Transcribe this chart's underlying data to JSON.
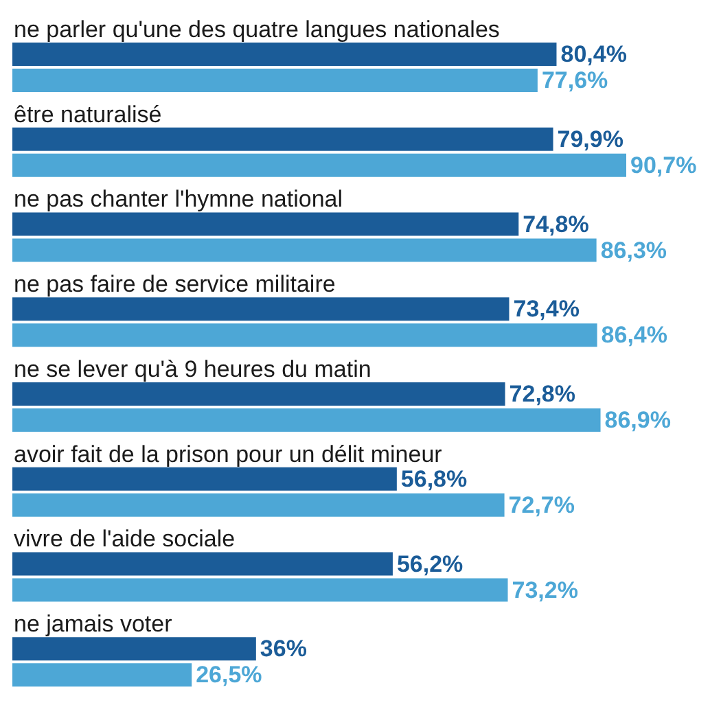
{
  "chart_data": {
    "type": "bar",
    "orientation": "horizontal",
    "categories": [
      "ne parler qu'une des quatre langues nationales",
      "être naturalisé",
      "ne pas chanter l'hymne national",
      "ne pas faire de service militaire",
      "ne se lever qu'à 9 heures du matin",
      "avoir fait de la prison pour un délit mineur",
      "vivre de l'aide sociale",
      "ne jamais voter"
    ],
    "series": [
      {
        "color": "#1b5c98",
        "values": [
          80.4,
          79.9,
          74.8,
          73.4,
          72.8,
          56.8,
          56.2,
          36
        ],
        "value_labels": [
          "80,4%",
          "79,9%",
          "74,8%",
          "73,4%",
          "72,8%",
          "56,8%",
          "56,2%",
          "36%"
        ]
      },
      {
        "color": "#4da7d6",
        "values": [
          77.6,
          90.7,
          86.3,
          86.4,
          86.9,
          72.7,
          73.2,
          26.5
        ],
        "value_labels": [
          "77,6%",
          "90,7%",
          "86,3%",
          "86,4%",
          "86,9%",
          "72,7%",
          "73,2%",
          "26,5%"
        ]
      }
    ]
  }
}
